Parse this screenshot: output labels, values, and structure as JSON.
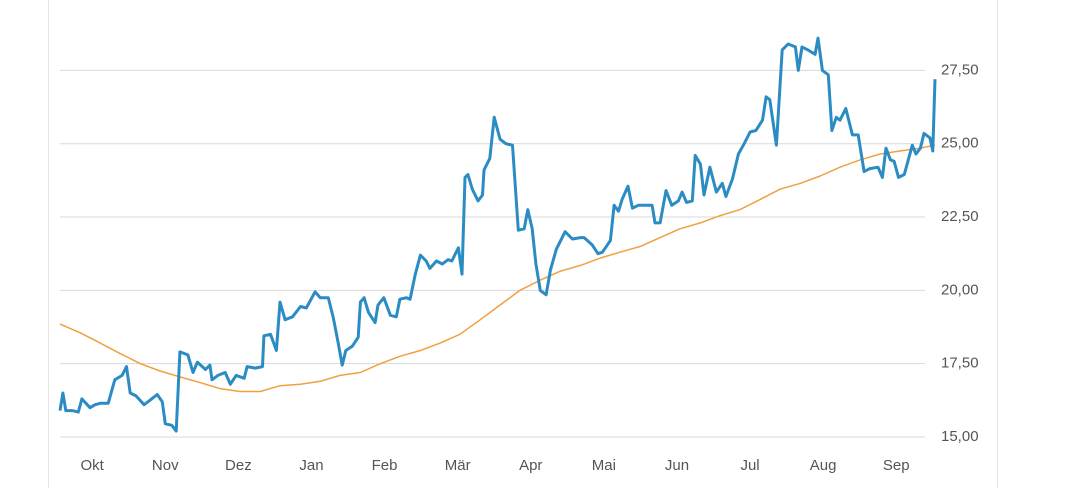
{
  "chart_data": {
    "type": "line",
    "xlim": [
      -0.44,
      11.53
    ],
    "xticks": [
      {
        "value": 0,
        "label": "Okt"
      },
      {
        "value": 1,
        "label": "Nov"
      },
      {
        "value": 2,
        "label": "Dez"
      },
      {
        "value": 3,
        "label": "Jan"
      },
      {
        "value": 4,
        "label": "Feb"
      },
      {
        "value": 5,
        "label": "Mär"
      },
      {
        "value": 6,
        "label": "Apr"
      },
      {
        "value": 7,
        "label": "Mai"
      },
      {
        "value": 8,
        "label": "Jun"
      },
      {
        "value": 9,
        "label": "Jul"
      },
      {
        "value": 10,
        "label": "Aug"
      },
      {
        "value": 11,
        "label": "Sep"
      }
    ],
    "ylim": [
      14.7,
      29.9
    ],
    "yticks": [
      {
        "value": 15,
        "label": "15,00"
      },
      {
        "value": 17.5,
        "label": "17,50"
      },
      {
        "value": 20,
        "label": "20,00"
      },
      {
        "value": 22.5,
        "label": "22,50"
      },
      {
        "value": 25,
        "label": "25,00"
      },
      {
        "value": 27.5,
        "label": "27,50"
      }
    ],
    "grid": true,
    "series": [
      {
        "color": "#2b8cc4",
        "width": 3,
        "x": [
          -0.44,
          -0.4,
          -0.36,
          -0.27,
          -0.19,
          -0.14,
          -0.03,
          0.04,
          0.11,
          0.22,
          0.31,
          0.41,
          0.47,
          0.52,
          0.6,
          0.71,
          0.79,
          0.89,
          0.96,
          1.0,
          1.09,
          1.15,
          1.2,
          1.31,
          1.38,
          1.44,
          1.55,
          1.61,
          1.64,
          1.72,
          1.82,
          1.89,
          1.97,
          2.08,
          2.12,
          2.23,
          2.33,
          2.35,
          2.44,
          2.52,
          2.57,
          2.64,
          2.74,
          2.85,
          2.93,
          3.05,
          3.12,
          3.23,
          3.3,
          3.37,
          3.42,
          3.47,
          3.56,
          3.64,
          3.67,
          3.72,
          3.78,
          3.87,
          3.91,
          3.99,
          4.08,
          4.16,
          4.21,
          4.3,
          4.35,
          4.42,
          4.49,
          4.57,
          4.62,
          4.71,
          4.79,
          4.87,
          4.92,
          5.01,
          5.06,
          5.1,
          5.14,
          5.2,
          5.28,
          5.34,
          5.36,
          5.44,
          5.5,
          5.58,
          5.66,
          5.75,
          5.83,
          5.91,
          5.96,
          6.02,
          6.07,
          6.13,
          6.21,
          6.27,
          6.35,
          6.47,
          6.57,
          6.68,
          6.73,
          6.84,
          6.92,
          6.98,
          7.09,
          7.14,
          7.2,
          7.25,
          7.33,
          7.39,
          7.47,
          7.58,
          7.66,
          7.7,
          7.77,
          7.85,
          7.93,
          8.02,
          8.07,
          8.13,
          8.21,
          8.25,
          8.32,
          8.37,
          8.45,
          8.54,
          8.62,
          8.67,
          8.76,
          8.84,
          8.92,
          9.0,
          9.08,
          9.17,
          9.22,
          9.27,
          9.36,
          9.44,
          9.52,
          9.62,
          9.66,
          9.71,
          9.79,
          9.89,
          9.93,
          9.99,
          10.07,
          10.12,
          10.18,
          10.23,
          10.31,
          10.4,
          10.48,
          10.56,
          10.64,
          10.75,
          10.81,
          10.86,
          10.92,
          10.97,
          11.03,
          11.11,
          11.22,
          11.27,
          11.33,
          11.38,
          11.46,
          11.5,
          11.53
        ],
        "values": [
          15.9,
          16.5,
          15.9,
          15.9,
          15.85,
          16.3,
          16.0,
          16.1,
          16.15,
          16.15,
          16.95,
          17.1,
          17.4,
          16.5,
          16.4,
          16.1,
          16.25,
          16.45,
          16.2,
          15.45,
          15.4,
          15.2,
          17.9,
          17.8,
          17.2,
          17.55,
          17.3,
          17.45,
          16.95,
          17.1,
          17.2,
          16.8,
          17.1,
          17.0,
          17.4,
          17.35,
          17.4,
          18.45,
          18.5,
          17.95,
          19.6,
          19.0,
          19.1,
          19.45,
          19.4,
          19.95,
          19.75,
          19.75,
          19.05,
          18.15,
          17.45,
          17.95,
          18.1,
          18.4,
          19.6,
          19.75,
          19.25,
          18.9,
          19.5,
          19.75,
          19.15,
          19.1,
          19.7,
          19.75,
          19.7,
          20.55,
          21.2,
          21.0,
          20.75,
          21.0,
          20.9,
          21.05,
          21.0,
          21.45,
          20.55,
          23.85,
          23.95,
          23.45,
          23.05,
          23.25,
          24.1,
          24.5,
          25.9,
          25.15,
          25.0,
          24.95,
          22.05,
          22.1,
          22.75,
          22.1,
          20.9,
          20.0,
          19.85,
          20.7,
          21.4,
          22.0,
          21.75,
          21.8,
          21.8,
          21.55,
          21.25,
          21.3,
          21.7,
          22.9,
          22.7,
          23.1,
          23.55,
          22.8,
          22.9,
          22.9,
          22.9,
          22.3,
          22.3,
          23.4,
          22.9,
          23.05,
          23.35,
          23.0,
          23.05,
          24.6,
          24.3,
          23.25,
          24.2,
          23.35,
          23.65,
          23.2,
          23.8,
          24.65,
          25.0,
          25.4,
          25.45,
          25.8,
          26.6,
          26.5,
          24.95,
          28.2,
          28.4,
          28.3,
          27.5,
          28.3,
          28.2,
          28.05,
          28.6,
          27.5,
          27.35,
          25.45,
          25.9,
          25.8,
          26.2,
          25.3,
          25.3,
          24.05,
          24.15,
          24.2,
          23.85,
          24.85,
          24.45,
          24.4,
          23.85,
          23.95,
          24.95,
          24.65,
          24.85,
          25.35,
          25.2,
          24.75,
          27.2
        ]
      },
      {
        "color": "#f0a040",
        "width": 1.5,
        "x": [
          -0.44,
          -0.16,
          0.11,
          0.38,
          0.66,
          0.93,
          1.2,
          1.48,
          1.75,
          2.02,
          2.3,
          2.57,
          2.85,
          3.12,
          3.39,
          3.67,
          3.94,
          4.21,
          4.49,
          4.76,
          5.03,
          5.31,
          5.58,
          5.85,
          6.13,
          6.4,
          6.68,
          6.95,
          7.22,
          7.5,
          7.77,
          8.04,
          8.32,
          8.59,
          8.86,
          9.14,
          9.41,
          9.69,
          9.96,
          10.23,
          10.51,
          10.78,
          11.05,
          11.33,
          11.53
        ],
        "values": [
          18.85,
          18.55,
          18.2,
          17.85,
          17.5,
          17.25,
          17.05,
          16.85,
          16.65,
          16.55,
          16.55,
          16.75,
          16.8,
          16.9,
          17.1,
          17.2,
          17.5,
          17.75,
          17.95,
          18.2,
          18.5,
          19.0,
          19.5,
          20.0,
          20.35,
          20.65,
          20.85,
          21.1,
          21.3,
          21.5,
          21.8,
          22.1,
          22.3,
          22.55,
          22.75,
          23.1,
          23.45,
          23.65,
          23.9,
          24.2,
          24.45,
          24.65,
          24.75,
          24.85,
          24.95
        ]
      }
    ]
  }
}
